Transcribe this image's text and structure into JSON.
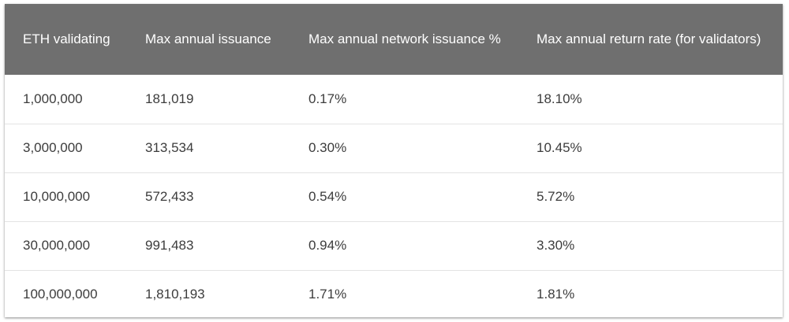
{
  "table": {
    "headers": [
      "ETH validating",
      "Max annual issuance",
      "Max annual network issuance %",
      "Max annual return rate (for validators)"
    ],
    "rows": [
      [
        "1,000,000",
        "181,019",
        "0.17%",
        "18.10%"
      ],
      [
        "3,000,000",
        "313,534",
        "0.30%",
        "10.45%"
      ],
      [
        "10,000,000",
        "572,433",
        "0.54%",
        "5.72%"
      ],
      [
        "30,000,000",
        "991,483",
        "0.94%",
        "3.30%"
      ],
      [
        "100,000,000",
        "1,810,193",
        "1.71%",
        "1.81%"
      ]
    ]
  },
  "colors": {
    "header_background": "#6f6f6f",
    "header_text": "#ffffff",
    "cell_text": "#3c3c3c",
    "row_divider": "#e3e3e3"
  }
}
